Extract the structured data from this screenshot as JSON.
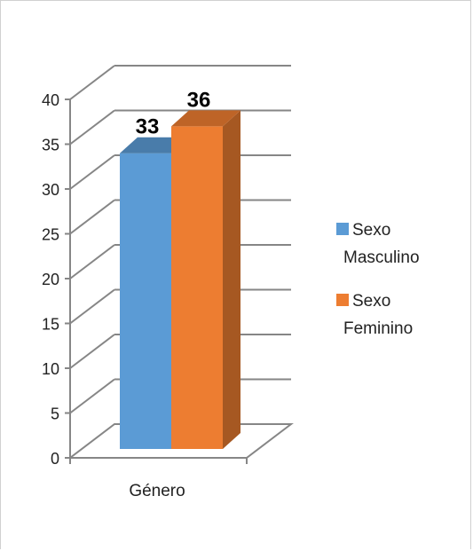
{
  "chart_data": {
    "type": "bar",
    "categories": [
      "Género"
    ],
    "series": [
      {
        "name": "Sexo Masculino",
        "values": [
          33
        ],
        "color": "#5B9BD5",
        "legend_lines": [
          "Sexo",
          "Masculino"
        ]
      },
      {
        "name": "Sexo Feminino",
        "values": [
          36
        ],
        "color": "#ED7D31",
        "legend_lines": [
          "Sexo",
          "Feminino"
        ]
      }
    ],
    "ylim": [
      0,
      40
    ],
    "yticks": [
      0,
      5,
      10,
      15,
      20,
      25,
      30,
      35,
      40
    ],
    "grid": true,
    "legend_position": "right",
    "data_labels": true,
    "style": "3d-column"
  }
}
